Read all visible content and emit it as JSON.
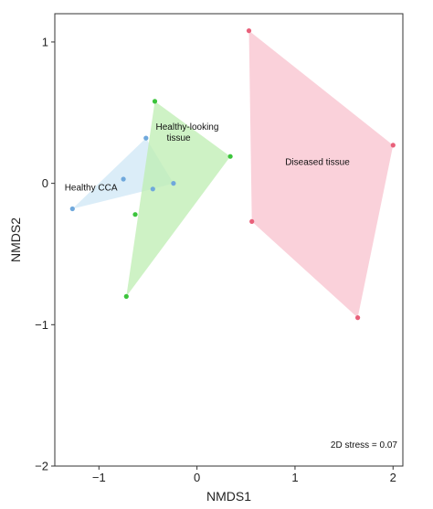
{
  "chart_data": {
    "type": "scatter",
    "xlabel": "NMDS1",
    "ylabel": "NMDS2",
    "xlim": [
      -1.45,
      2.1
    ],
    "ylim": [
      -2.0,
      1.2
    ],
    "grid": false,
    "legend": "none",
    "x_ticks": [
      {
        "value": -1,
        "label": "−1"
      },
      {
        "value": 0,
        "label": "0"
      },
      {
        "value": 1,
        "label": "1"
      },
      {
        "value": 2,
        "label": "2"
      }
    ],
    "y_ticks": [
      {
        "value": -2,
        "label": "−2"
      },
      {
        "value": -1,
        "label": "−1"
      },
      {
        "value": 0,
        "label": "0"
      },
      {
        "value": 1,
        "label": "1"
      }
    ],
    "series": [
      {
        "name": "Healthy CCA",
        "color": "#6fa8dc",
        "fill": "#cfe7f5",
        "points": [
          {
            "x": -1.27,
            "y": -0.18
          },
          {
            "x": -0.75,
            "y": 0.03
          },
          {
            "x": -0.52,
            "y": 0.32
          },
          {
            "x": -0.45,
            "y": -0.04
          },
          {
            "x": -0.24,
            "y": 0.0
          }
        ],
        "hull": [
          0,
          2,
          4,
          3
        ],
        "label_pos": {
          "x": -1.35,
          "y": -0.05
        }
      },
      {
        "name": "Healthy-looking\ntissue",
        "label_lines": [
          "Healthy-looking",
          "tissue"
        ],
        "color": "#3bc43b",
        "fill": "#bdeeb2",
        "points": [
          {
            "x": -0.43,
            "y": 0.58
          },
          {
            "x": 0.34,
            "y": 0.19
          },
          {
            "x": -0.63,
            "y": -0.22
          },
          {
            "x": -0.72,
            "y": -0.8
          }
        ],
        "hull": [
          0,
          1,
          3
        ],
        "label_pos": {
          "x": -0.42,
          "y": 0.38
        }
      },
      {
        "name": "Diseased tissue",
        "color": "#e8607a",
        "fill": "#f8c2cd",
        "points": [
          {
            "x": 0.53,
            "y": 1.08
          },
          {
            "x": 2.0,
            "y": 0.27
          },
          {
            "x": 1.64,
            "y": -0.95
          },
          {
            "x": 0.56,
            "y": -0.27
          }
        ],
        "hull": [
          0,
          1,
          2,
          3
        ],
        "label_pos": {
          "x": 0.9,
          "y": 0.13
        }
      }
    ],
    "annotation": "2D stress = 0.07"
  }
}
